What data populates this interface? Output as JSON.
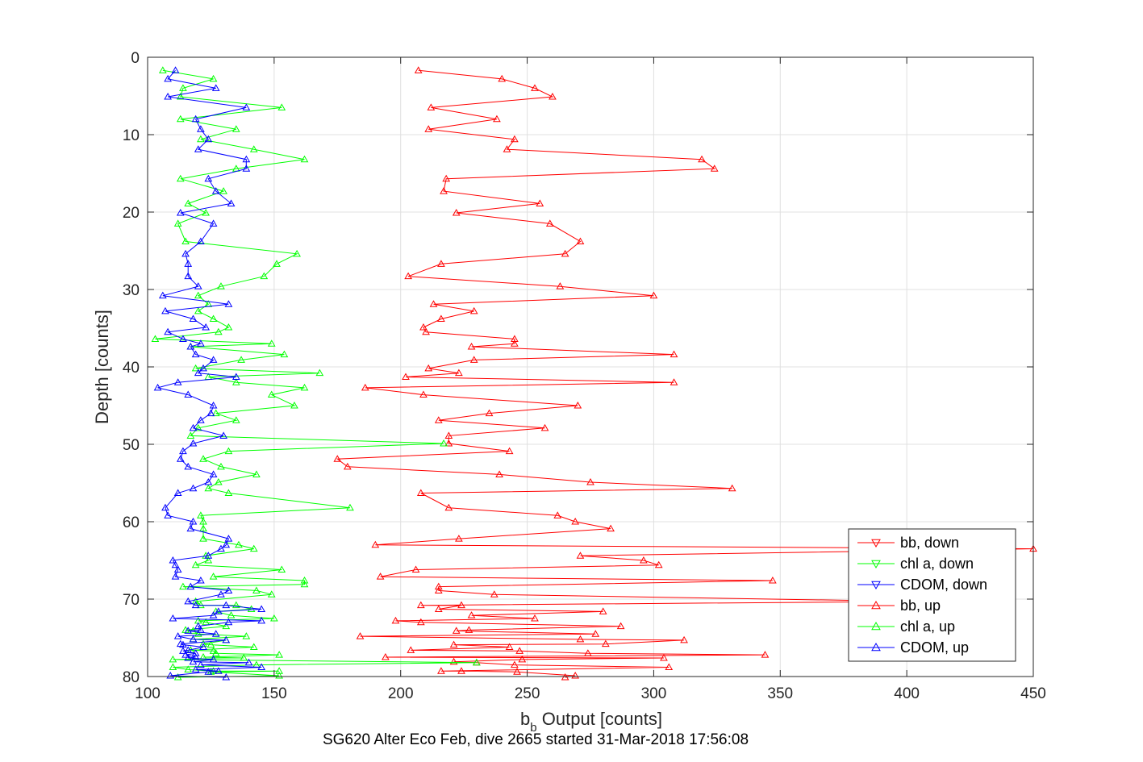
{
  "caption": "SG620 Alter Eco Feb, dive 2665 started 31-Mar-2018 17:56:08",
  "chart_data": {
    "type": "line",
    "xlabel_main": "b",
    "xlabel_sub": "b",
    "xlabel_rest": " Output [counts]",
    "ylabel": "Depth [counts]",
    "xlim": [
      100,
      450
    ],
    "ylim": [
      0,
      80
    ],
    "y_reversed": true,
    "grid": true,
    "xticks": [
      100,
      150,
      200,
      250,
      300,
      350,
      400,
      450
    ],
    "yticks": [
      0,
      10,
      20,
      30,
      40,
      50,
      60,
      70,
      80
    ],
    "legend_position": "bottom-right",
    "series": [
      {
        "name": "bb, down",
        "color": "#ff0000",
        "marker": "triangle-down",
        "points": []
      },
      {
        "name": "chl a, down",
        "color": "#00ff00",
        "marker": "triangle-down",
        "points": []
      },
      {
        "name": "CDOM, down",
        "color": "#0000ff",
        "marker": "triangle-down",
        "points": []
      },
      {
        "name": "bb, up",
        "color": "#ff0000",
        "marker": "triangle-up",
        "points": [
          [
            207,
            1.7
          ],
          [
            240,
            2.8
          ],
          [
            253,
            4.0
          ],
          [
            260,
            5.1
          ],
          [
            212,
            6.5
          ],
          [
            238,
            8.0
          ],
          [
            211,
            9.3
          ],
          [
            245,
            10.6
          ],
          [
            242,
            11.9
          ],
          [
            319,
            13.2
          ],
          [
            324,
            14.4
          ],
          [
            218,
            15.7
          ],
          [
            217,
            17.3
          ],
          [
            255,
            18.9
          ],
          [
            222,
            20.1
          ],
          [
            259,
            21.5
          ],
          [
            271,
            23.8
          ],
          [
            265,
            25.4
          ],
          [
            216,
            26.7
          ],
          [
            203,
            28.3
          ],
          [
            263,
            29.6
          ],
          [
            300,
            30.8
          ],
          [
            213,
            31.9
          ],
          [
            229,
            32.8
          ],
          [
            216,
            33.8
          ],
          [
            209,
            34.9
          ],
          [
            210,
            35.5
          ],
          [
            245,
            36.4
          ],
          [
            245,
            37.0
          ],
          [
            228,
            37.4
          ],
          [
            308,
            38.4
          ],
          [
            229,
            39.1
          ],
          [
            211,
            40.2
          ],
          [
            223,
            40.8
          ],
          [
            202,
            41.3
          ],
          [
            308,
            42.0
          ],
          [
            186,
            42.7
          ],
          [
            209,
            43.6
          ],
          [
            270,
            45.0
          ],
          [
            235,
            46.0
          ],
          [
            215,
            46.9
          ],
          [
            257,
            47.9
          ],
          [
            219,
            48.9
          ],
          [
            219,
            49.9
          ],
          [
            243,
            50.9
          ],
          [
            175,
            51.9
          ],
          [
            179,
            52.9
          ],
          [
            239,
            53.9
          ],
          [
            275,
            54.9
          ],
          [
            331,
            55.7
          ],
          [
            208,
            56.3
          ],
          [
            219,
            58.2
          ],
          [
            262,
            59.2
          ],
          [
            269,
            60.0
          ],
          [
            283,
            60.9
          ],
          [
            223,
            62.2
          ],
          [
            190,
            63.0
          ],
          [
            450,
            63.5
          ],
          [
            271,
            64.4
          ],
          [
            296,
            65.0
          ],
          [
            302,
            65.6
          ],
          [
            206,
            66.2
          ],
          [
            192,
            67.1
          ],
          [
            347,
            67.6
          ],
          [
            215,
            68.4
          ],
          [
            215,
            68.9
          ],
          [
            237,
            69.4
          ],
          [
            403,
            70.3
          ],
          [
            208,
            70.8
          ],
          [
            224,
            70.8
          ],
          [
            215,
            71.3
          ],
          [
            280,
            71.6
          ],
          [
            228,
            72.1
          ],
          [
            253,
            72.5
          ],
          [
            198,
            72.8
          ],
          [
            208,
            73.0
          ],
          [
            287,
            73.5
          ],
          [
            227,
            74.0
          ],
          [
            222,
            74.1
          ],
          [
            277,
            74.5
          ],
          [
            184,
            74.8
          ],
          [
            271,
            75.2
          ],
          [
            312,
            75.3
          ],
          [
            281,
            75.8
          ],
          [
            221,
            75.9
          ],
          [
            243,
            76.2
          ],
          [
            204,
            76.6
          ],
          [
            247,
            76.7
          ],
          [
            274,
            77.0
          ],
          [
            344,
            77.2
          ],
          [
            194,
            77.5
          ],
          [
            304,
            77.6
          ],
          [
            248,
            77.8
          ],
          [
            221,
            78.1
          ],
          [
            230,
            78.2
          ],
          [
            245,
            78.5
          ],
          [
            306,
            78.8
          ],
          [
            216,
            79.3
          ],
          [
            224,
            79.3
          ],
          [
            246,
            79.4
          ],
          [
            269,
            79.9
          ],
          [
            265,
            80.1
          ]
        ]
      },
      {
        "name": "chl a, up",
        "color": "#00ff00",
        "marker": "triangle-up",
        "points": [
          [
            106,
            1.7
          ],
          [
            126,
            2.8
          ],
          [
            114,
            4.0
          ],
          [
            113,
            5.1
          ],
          [
            153,
            6.5
          ],
          [
            113,
            8.0
          ],
          [
            135,
            9.3
          ],
          [
            121,
            10.6
          ],
          [
            142,
            11.9
          ],
          [
            162,
            13.2
          ],
          [
            135,
            14.4
          ],
          [
            113,
            15.7
          ],
          [
            130,
            17.3
          ],
          [
            116,
            18.9
          ],
          [
            123,
            20.1
          ],
          [
            112,
            21.5
          ],
          [
            115,
            23.8
          ],
          [
            159,
            25.4
          ],
          [
            151,
            26.7
          ],
          [
            146,
            28.3
          ],
          [
            129,
            29.6
          ],
          [
            120,
            30.8
          ],
          [
            124,
            31.9
          ],
          [
            120,
            32.8
          ],
          [
            126,
            33.8
          ],
          [
            132,
            34.9
          ],
          [
            128,
            35.5
          ],
          [
            103,
            36.4
          ],
          [
            149,
            37.0
          ],
          [
            117,
            37.4
          ],
          [
            154,
            38.4
          ],
          [
            137,
            39.1
          ],
          [
            119,
            40.2
          ],
          [
            168,
            40.8
          ],
          [
            124,
            41.3
          ],
          [
            135,
            42.0
          ],
          [
            162,
            42.7
          ],
          [
            149,
            43.6
          ],
          [
            158,
            45.0
          ],
          [
            127,
            46.0
          ],
          [
            135,
            46.9
          ],
          [
            120,
            47.9
          ],
          [
            117,
            48.9
          ],
          [
            217,
            49.9
          ],
          [
            132,
            50.9
          ],
          [
            122,
            51.9
          ],
          [
            129,
            52.9
          ],
          [
            143,
            53.9
          ],
          [
            128,
            54.9
          ],
          [
            124,
            55.7
          ],
          [
            132,
            56.3
          ],
          [
            180,
            58.2
          ],
          [
            121,
            59.2
          ],
          [
            122,
            60.0
          ],
          [
            122,
            60.9
          ],
          [
            122,
            62.2
          ],
          [
            136,
            63.0
          ],
          [
            142,
            63.5
          ],
          [
            123,
            64.4
          ],
          [
            124,
            65.0
          ],
          [
            119,
            65.6
          ],
          [
            153,
            66.2
          ],
          [
            126,
            67.1
          ],
          [
            162,
            67.6
          ],
          [
            162,
            68.1
          ],
          [
            114,
            68.4
          ],
          [
            143,
            68.9
          ],
          [
            149,
            69.4
          ],
          [
            119,
            70.3
          ],
          [
            121,
            70.8
          ],
          [
            135,
            70.8
          ],
          [
            141,
            71.3
          ],
          [
            127,
            71.6
          ],
          [
            133,
            72.1
          ],
          [
            150,
            72.5
          ],
          [
            120,
            72.8
          ],
          [
            123,
            73.0
          ],
          [
            131,
            73.5
          ],
          [
            115,
            74.0
          ],
          [
            118,
            74.1
          ],
          [
            120,
            74.5
          ],
          [
            139,
            74.8
          ],
          [
            118,
            75.2
          ],
          [
            131,
            75.3
          ],
          [
            122,
            75.8
          ],
          [
            125,
            75.9
          ],
          [
            142,
            76.2
          ],
          [
            117,
            76.6
          ],
          [
            126,
            76.7
          ],
          [
            127,
            77.0
          ],
          [
            152,
            77.2
          ],
          [
            122,
            77.5
          ],
          [
            138,
            77.6
          ],
          [
            110,
            77.8
          ],
          [
            230,
            78.2
          ],
          [
            143,
            78.5
          ],
          [
            110,
            78.8
          ],
          [
            116,
            79.1
          ],
          [
            126,
            79.3
          ],
          [
            152,
            79.3
          ],
          [
            125,
            79.4
          ],
          [
            152,
            79.9
          ],
          [
            112,
            80.1
          ]
        ]
      },
      {
        "name": "CDOM, up",
        "color": "#0000ff",
        "marker": "triangle-up",
        "points": [
          [
            111,
            1.7
          ],
          [
            108,
            2.8
          ],
          [
            127,
            4.0
          ],
          [
            108,
            5.1
          ],
          [
            139,
            6.5
          ],
          [
            119,
            8.0
          ],
          [
            121,
            9.3
          ],
          [
            124,
            10.6
          ],
          [
            120,
            11.9
          ],
          [
            139,
            13.2
          ],
          [
            139,
            14.4
          ],
          [
            124,
            15.7
          ],
          [
            127,
            17.3
          ],
          [
            133,
            18.9
          ],
          [
            113,
            20.1
          ],
          [
            126,
            21.5
          ],
          [
            121,
            23.8
          ],
          [
            115,
            25.4
          ],
          [
            116,
            26.7
          ],
          [
            116,
            28.3
          ],
          [
            120,
            29.6
          ],
          [
            106,
            30.8
          ],
          [
            132,
            31.9
          ],
          [
            107,
            32.8
          ],
          [
            118,
            33.8
          ],
          [
            123,
            34.9
          ],
          [
            108,
            35.5
          ],
          [
            114,
            36.4
          ],
          [
            121,
            37.0
          ],
          [
            117,
            37.4
          ],
          [
            119,
            38.4
          ],
          [
            126,
            39.1
          ],
          [
            122,
            40.2
          ],
          [
            120,
            40.8
          ],
          [
            135,
            41.3
          ],
          [
            112,
            42.0
          ],
          [
            104,
            42.7
          ],
          [
            116,
            43.6
          ],
          [
            126,
            45.0
          ],
          [
            125,
            46.0
          ],
          [
            121,
            46.9
          ],
          [
            118,
            47.9
          ],
          [
            130,
            48.9
          ],
          [
            118,
            49.9
          ],
          [
            114,
            50.9
          ],
          [
            113,
            51.9
          ],
          [
            116,
            52.9
          ],
          [
            126,
            53.9
          ],
          [
            124,
            54.9
          ],
          [
            118,
            55.7
          ],
          [
            112,
            56.3
          ],
          [
            107,
            58.2
          ],
          [
            108,
            59.2
          ],
          [
            118,
            60.0
          ],
          [
            117,
            60.9
          ],
          [
            132,
            62.2
          ],
          [
            131,
            63.0
          ],
          [
            129,
            63.5
          ],
          [
            124,
            64.4
          ],
          [
            110,
            65.0
          ],
          [
            111,
            65.6
          ],
          [
            112,
            66.2
          ],
          [
            111,
            67.1
          ],
          [
            121,
            67.6
          ],
          [
            117,
            68.4
          ],
          [
            132,
            68.9
          ],
          [
            129,
            69.4
          ],
          [
            116,
            70.3
          ],
          [
            119,
            70.8
          ],
          [
            131,
            70.8
          ],
          [
            145,
            71.3
          ],
          [
            128,
            71.6
          ],
          [
            126,
            72.1
          ],
          [
            110,
            72.5
          ],
          [
            145,
            72.8
          ],
          [
            132,
            73.0
          ],
          [
            120,
            73.5
          ],
          [
            121,
            74.0
          ],
          [
            116,
            74.1
          ],
          [
            127,
            74.5
          ],
          [
            112,
            74.8
          ],
          [
            118,
            75.2
          ],
          [
            131,
            75.3
          ],
          [
            113,
            75.8
          ],
          [
            114,
            75.9
          ],
          [
            122,
            76.2
          ],
          [
            116,
            76.6
          ],
          [
            114,
            76.7
          ],
          [
            119,
            77.0
          ],
          [
            115,
            77.2
          ],
          [
            119,
            77.5
          ],
          [
            116,
            77.6
          ],
          [
            126,
            77.8
          ],
          [
            118,
            78.1
          ],
          [
            140,
            78.2
          ],
          [
            121,
            78.5
          ],
          [
            145,
            78.8
          ],
          [
            119,
            79.1
          ],
          [
            128,
            79.3
          ],
          [
            124,
            79.4
          ],
          [
            109,
            79.9
          ],
          [
            131,
            80.1
          ]
        ]
      }
    ]
  }
}
